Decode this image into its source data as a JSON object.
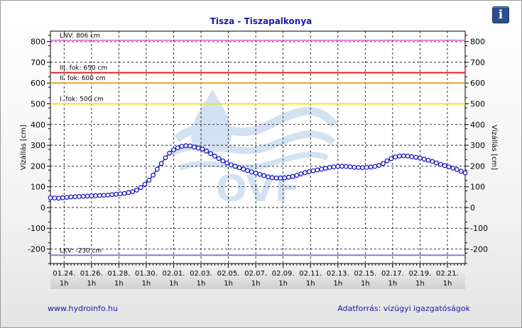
{
  "header": {
    "title": "Tisza - Tiszapalkonya",
    "info_label": "i"
  },
  "footer": {
    "link": "www.hydroinfo.hu",
    "source": "Adatforrás: vízügyi igazgatóságok"
  },
  "watermark": "OVF",
  "chart_data": {
    "type": "line",
    "title": "Tisza - Tiszapalkonya",
    "ylabel": "Vízállás [cm]",
    "ylim": [
      -270,
      850
    ],
    "yticks": [
      -200,
      -100,
      0,
      100,
      200,
      300,
      400,
      500,
      600,
      700,
      800
    ],
    "grid": true,
    "x_ticks": [
      {
        "date": "01.24.",
        "hour": "1h"
      },
      {
        "date": "01.26.",
        "hour": "1h"
      },
      {
        "date": "01.28.",
        "hour": "1h"
      },
      {
        "date": "01.30.",
        "hour": "1h"
      },
      {
        "date": "02.01.",
        "hour": "1h"
      },
      {
        "date": "02.03.",
        "hour": "1h"
      },
      {
        "date": "02.05.",
        "hour": "1h"
      },
      {
        "date": "02.07.",
        "hour": "1h"
      },
      {
        "date": "02.09.",
        "hour": "1h"
      },
      {
        "date": "02.11.",
        "hour": "1h"
      },
      {
        "date": "02.13.",
        "hour": "1h"
      },
      {
        "date": "02.15.",
        "hour": "1h"
      },
      {
        "date": "02.17.",
        "hour": "1h"
      },
      {
        "date": "02.19.",
        "hour": "1h"
      },
      {
        "date": "02.21.",
        "hour": "1h"
      }
    ],
    "x_domain_days": [
      -1,
      29.3
    ],
    "thresholds": [
      {
        "label": "LNV: 806 cm",
        "value": 806,
        "color": "#d040d0",
        "dashed": true
      },
      {
        "label": "III. fok: 650 cm",
        "value": 650,
        "color": "#e02020",
        "dashed": false
      },
      {
        "label": "II. fok: 600 cm",
        "value": 600,
        "color": "#f0a020",
        "dashed": false
      },
      {
        "label": "I. fok: 500 cm",
        "value": 500,
        "color": "#e8e820",
        "dashed": false
      },
      {
        "label": "LKV: -230 cm",
        "value": -230,
        "color": "#8080d0",
        "dashed": false
      }
    ],
    "series": [
      {
        "color": "#1010c0",
        "marker_color": "#1010c0",
        "points": [
          [
            -1.0,
            47
          ],
          [
            -0.7,
            46
          ],
          [
            -0.4,
            45
          ],
          [
            -0.1,
            47
          ],
          [
            0.2,
            49
          ],
          [
            0.5,
            51
          ],
          [
            0.8,
            52
          ],
          [
            1.1,
            53
          ],
          [
            1.4,
            54
          ],
          [
            1.7,
            55
          ],
          [
            2.0,
            56
          ],
          [
            2.3,
            57
          ],
          [
            2.6,
            58
          ],
          [
            2.9,
            59
          ],
          [
            3.2,
            60
          ],
          [
            3.5,
            62
          ],
          [
            3.8,
            64
          ],
          [
            4.1,
            66
          ],
          [
            4.4,
            68
          ],
          [
            4.7,
            72
          ],
          [
            5.0,
            76
          ],
          [
            5.3,
            84
          ],
          [
            5.6,
            96
          ],
          [
            5.9,
            112
          ],
          [
            6.2,
            132
          ],
          [
            6.5,
            156
          ],
          [
            6.8,
            184
          ],
          [
            7.1,
            212
          ],
          [
            7.4,
            240
          ],
          [
            7.7,
            262
          ],
          [
            8.0,
            278
          ],
          [
            8.3,
            288
          ],
          [
            8.6,
            295
          ],
          [
            8.9,
            298
          ],
          [
            9.2,
            297
          ],
          [
            9.5,
            292
          ],
          [
            9.8,
            287
          ],
          [
            10.1,
            282
          ],
          [
            10.4,
            272
          ],
          [
            10.7,
            260
          ],
          [
            11.0,
            248
          ],
          [
            11.3,
            236
          ],
          [
            11.6,
            225
          ],
          [
            11.9,
            215
          ],
          [
            12.2,
            206
          ],
          [
            12.5,
            199
          ],
          [
            12.8,
            192
          ],
          [
            13.1,
            185
          ],
          [
            13.4,
            178
          ],
          [
            13.7,
            172
          ],
          [
            14.0,
            166
          ],
          [
            14.3,
            160
          ],
          [
            14.6,
            154
          ],
          [
            14.9,
            148
          ],
          [
            15.2,
            144
          ],
          [
            15.5,
            142
          ],
          [
            15.8,
            142
          ],
          [
            16.1,
            143
          ],
          [
            16.4,
            146
          ],
          [
            16.7,
            150
          ],
          [
            17.0,
            155
          ],
          [
            17.3,
            162
          ],
          [
            17.6,
            168
          ],
          [
            17.9,
            173
          ],
          [
            18.2,
            177
          ],
          [
            18.5,
            181
          ],
          [
            18.8,
            185
          ],
          [
            19.1,
            189
          ],
          [
            19.4,
            193
          ],
          [
            19.7,
            196
          ],
          [
            20.0,
            198
          ],
          [
            20.3,
            199
          ],
          [
            20.6,
            198
          ],
          [
            20.9,
            196
          ],
          [
            21.2,
            194
          ],
          [
            21.5,
            193
          ],
          [
            21.8,
            192
          ],
          [
            22.1,
            193
          ],
          [
            22.4,
            195
          ],
          [
            22.7,
            198
          ],
          [
            23.0,
            203
          ],
          [
            23.3,
            212
          ],
          [
            23.6,
            225
          ],
          [
            23.9,
            236
          ],
          [
            24.2,
            244
          ],
          [
            24.5,
            248
          ],
          [
            24.8,
            249
          ],
          [
            25.1,
            248
          ],
          [
            25.4,
            245
          ],
          [
            25.7,
            242
          ],
          [
            26.0,
            238
          ],
          [
            26.3,
            233
          ],
          [
            26.6,
            228
          ],
          [
            26.9,
            222
          ],
          [
            27.2,
            215
          ],
          [
            27.5,
            208
          ],
          [
            27.8,
            202
          ],
          [
            28.1,
            196
          ],
          [
            28.4,
            190
          ],
          [
            28.7,
            183
          ],
          [
            29.0,
            175
          ],
          [
            29.3,
            167
          ]
        ]
      }
    ]
  }
}
